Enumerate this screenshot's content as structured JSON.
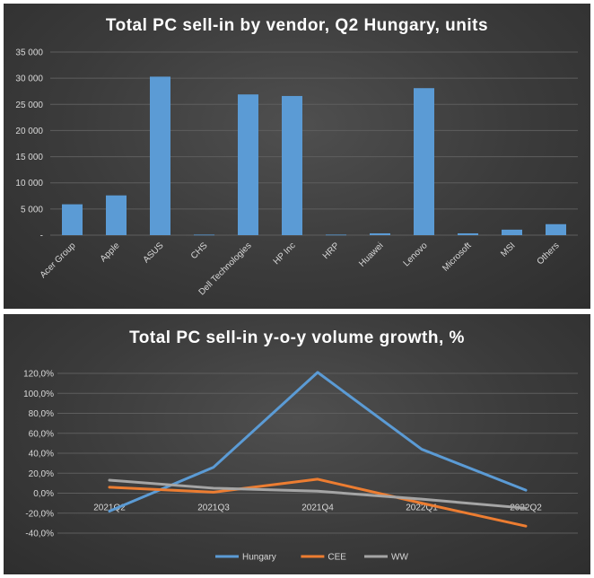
{
  "chart_data": [
    {
      "type": "bar",
      "title": "Total PC sell-in by vendor, Q2 Hungary, units",
      "categories": [
        "Acer Group",
        "Apple",
        "ASUS",
        "CHS",
        "Dell Technologies",
        "HP Inc",
        "HRP",
        "Huawei",
        "Lenovo",
        "Microsoft",
        "MSI",
        "Others"
      ],
      "values": [
        5900,
        7600,
        30300,
        100,
        26900,
        26600,
        100,
        350,
        28100,
        350,
        1050,
        2100
      ],
      "ylim": [
        0,
        35000
      ],
      "yticks": [
        "-",
        "5 000",
        "10 000",
        "15 000",
        "20 000",
        "25 000",
        "30 000",
        "35 000"
      ],
      "grid": true,
      "color": "#5b9bd5"
    },
    {
      "type": "line",
      "title": "Total PC sell-in y-o-y volume growth, %",
      "categories": [
        "2021Q2",
        "2021Q3",
        "2021Q4",
        "2022Q1",
        "2022Q2"
      ],
      "series": [
        {
          "name": "Hungary",
          "values": [
            -18,
            26,
            121,
            44,
            3
          ],
          "color": "#5b9bd5"
        },
        {
          "name": "CEE",
          "values": [
            6,
            1,
            14,
            -10,
            -33
          ],
          "color": "#ed7d31"
        },
        {
          "name": "WW",
          "values": [
            13,
            5,
            2,
            -6,
            -15
          ],
          "color": "#a5a5a5"
        }
      ],
      "ylim": [
        -40,
        120
      ],
      "yticks": [
        "-40,0%",
        "-20,0%",
        "0,0%",
        "20,0%",
        "40,0%",
        "60,0%",
        "80,0%",
        "100,0%",
        "120,0%"
      ],
      "grid": true,
      "legend": "bottom"
    }
  ]
}
